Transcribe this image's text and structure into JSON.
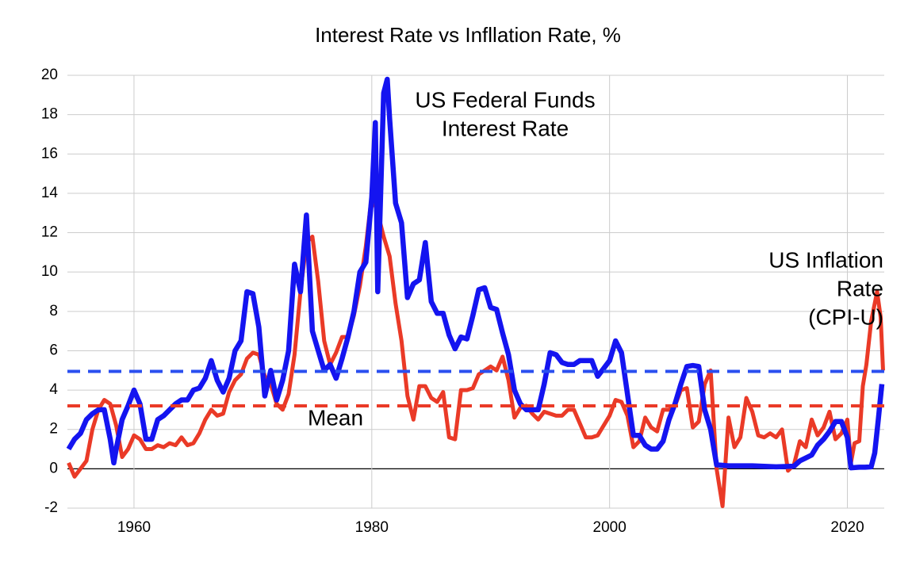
{
  "chart_data": {
    "type": "line",
    "title": "Interest Rate vs Infllation Rate, %",
    "xlim": [
      1954.4,
      2023.1
    ],
    "xticks": [
      1960,
      1980,
      2000,
      2020
    ],
    "ylim": [
      -2,
      20
    ],
    "yticks": [
      -2,
      0,
      2,
      4,
      6,
      8,
      10,
      12,
      14,
      16,
      18,
      20
    ],
    "grid": true,
    "series": [
      {
        "color": "#ea3a27",
        "x": [
          1954.5,
          1955,
          1955.5,
          1956,
          1956.5,
          1957,
          1957.5,
          1958,
          1958.5,
          1959,
          1959.5,
          1960,
          1960.5,
          1961,
          1961.5,
          1962,
          1962.5,
          1963,
          1963.5,
          1964,
          1964.5,
          1965,
          1965.5,
          1966,
          1966.5,
          1967,
          1967.5,
          1968,
          1968.5,
          1969,
          1969.5,
          1970,
          1970.5,
          1971,
          1971.5,
          1972,
          1972.5,
          1973,
          1973.5,
          1974,
          1974.5,
          1975,
          1975.5,
          1976,
          1976.5,
          1977,
          1977.5,
          1978,
          1978.5,
          1979,
          1979.5,
          1980,
          1980.5,
          1981,
          1981.5,
          1982,
          1982.5,
          1983,
          1983.5,
          1984,
          1984.5,
          1985,
          1985.5,
          1986,
          1986.5,
          1987,
          1987.5,
          1988,
          1988.5,
          1989,
          1989.5,
          1990,
          1990.5,
          1991,
          1991.5,
          1992,
          1992.5,
          1993,
          1993.5,
          1994,
          1994.5,
          1995,
          1995.5,
          1996,
          1996.5,
          1997,
          1997.5,
          1998,
          1998.5,
          1999,
          1999.5,
          2000,
          2000.5,
          2001,
          2001.5,
          2002,
          2002.5,
          2003,
          2003.5,
          2004,
          2004.5,
          2005,
          2005.5,
          2006,
          2006.5,
          2007,
          2007.5,
          2008,
          2008.5,
          2009,
          2009.5,
          2010,
          2010.5,
          2011,
          2011.5,
          2012,
          2012.5,
          2013,
          2013.5,
          2014,
          2014.5,
          2015,
          2015.5,
          2016,
          2016.5,
          2017,
          2017.5,
          2018,
          2018.5,
          2019,
          2019.5,
          2020,
          2020.3,
          2020.6,
          2021,
          2021.3,
          2021.6,
          2022,
          2022.5,
          2022.8,
          2023
        ],
        "values": [
          0.3,
          -0.4,
          0.0,
          0.4,
          2.0,
          3.0,
          3.5,
          3.3,
          2.2,
          0.6,
          1.0,
          1.7,
          1.5,
          1.0,
          1.0,
          1.2,
          1.1,
          1.3,
          1.2,
          1.6,
          1.2,
          1.3,
          1.8,
          2.5,
          3.0,
          2.7,
          2.8,
          3.9,
          4.5,
          4.8,
          5.6,
          5.9,
          5.8,
          4.7,
          4.3,
          3.3,
          3.0,
          3.8,
          5.8,
          9.0,
          11.5,
          11.8,
          9.5,
          6.5,
          5.3,
          5.9,
          6.7,
          6.7,
          7.8,
          9.3,
          11.3,
          13.9,
          13.0,
          11.8,
          10.8,
          8.4,
          6.5,
          3.7,
          2.5,
          4.2,
          4.2,
          3.6,
          3.4,
          3.9,
          1.6,
          1.5,
          4.0,
          4.0,
          4.1,
          4.8,
          5.0,
          5.2,
          5.0,
          5.7,
          4.5,
          2.6,
          3.1,
          3.2,
          2.8,
          2.5,
          2.9,
          2.8,
          2.7,
          2.7,
          3.0,
          3.0,
          2.3,
          1.6,
          1.6,
          1.7,
          2.2,
          2.7,
          3.5,
          3.4,
          2.7,
          1.1,
          1.4,
          2.6,
          2.1,
          1.9,
          3.0,
          3.0,
          3.2,
          4.0,
          4.1,
          2.1,
          2.4,
          4.3,
          5.0,
          0.0,
          -1.9,
          2.6,
          1.1,
          1.6,
          3.6,
          2.9,
          1.7,
          1.6,
          1.8,
          1.6,
          2.0,
          -0.1,
          0.2,
          1.4,
          1.1,
          2.5,
          1.7,
          2.1,
          2.9,
          1.5,
          1.8,
          2.5,
          0.3,
          1.3,
          1.4,
          4.2,
          5.3,
          7.5,
          9.0,
          7.7,
          5.0
        ]
      },
      {
        "color": "#1414f0",
        "x": [
          1954.5,
          1955,
          1955.5,
          1956,
          1956.5,
          1957,
          1957.5,
          1958,
          1958.3,
          1958.5,
          1959,
          1959.5,
          1960,
          1960.5,
          1961,
          1961.5,
          1962,
          1962.5,
          1963,
          1963.5,
          1964,
          1964.5,
          1965,
          1965.5,
          1966,
          1966.5,
          1967,
          1967.5,
          1968,
          1968.5,
          1969,
          1969.5,
          1970,
          1970.5,
          1971,
          1971.5,
          1972,
          1972.5,
          1973,
          1973.5,
          1974,
          1974.5,
          1975,
          1975.5,
          1976,
          1976.5,
          1977,
          1977.5,
          1978,
          1978.5,
          1979,
          1979.5,
          1980,
          1980.3,
          1980.5,
          1981,
          1981.3,
          1981.5,
          1982,
          1982.5,
          1983,
          1983.5,
          1984,
          1984.5,
          1985,
          1985.5,
          1986,
          1986.5,
          1987,
          1987.5,
          1988,
          1988.5,
          1989,
          1989.5,
          1990,
          1990.5,
          1991,
          1991.5,
          1992,
          1992.5,
          1993,
          1993.5,
          1994,
          1994.5,
          1995,
          1995.5,
          1996,
          1996.5,
          1997,
          1997.5,
          1998,
          1998.5,
          1999,
          1999.5,
          2000,
          2000.5,
          2001,
          2001.5,
          2002,
          2002.5,
          2003,
          2003.5,
          2004,
          2004.5,
          2005,
          2005.5,
          2006,
          2006.5,
          2007,
          2007.5,
          2008,
          2008.5,
          2009,
          2010,
          2012,
          2014,
          2015.5,
          2016,
          2017,
          2017.5,
          2018,
          2018.5,
          2019,
          2019.5,
          2020,
          2020.3,
          2021,
          2021.5,
          2022,
          2022.3,
          2022.6,
          2022.9
        ],
        "values": [
          1.0,
          1.5,
          1.8,
          2.5,
          2.8,
          3.0,
          3.0,
          1.5,
          0.3,
          1.0,
          2.5,
          3.2,
          4.0,
          3.3,
          1.5,
          1.5,
          2.5,
          2.7,
          3.0,
          3.3,
          3.5,
          3.5,
          4.0,
          4.1,
          4.6,
          5.5,
          4.5,
          3.9,
          4.6,
          6.0,
          6.5,
          9.0,
          8.9,
          7.2,
          3.7,
          5.0,
          3.5,
          4.5,
          6.0,
          10.4,
          9.0,
          12.9,
          7.0,
          6.0,
          5.0,
          5.3,
          4.6,
          5.6,
          6.7,
          8.0,
          10.0,
          10.5,
          13.8,
          17.6,
          9.0,
          19.1,
          19.8,
          17.8,
          13.5,
          12.5,
          8.7,
          9.4,
          9.6,
          11.5,
          8.5,
          7.9,
          7.9,
          6.8,
          6.1,
          6.7,
          6.6,
          7.8,
          9.1,
          9.2,
          8.2,
          8.1,
          6.9,
          5.8,
          4.0,
          3.3,
          3.0,
          3.0,
          3.0,
          4.3,
          5.9,
          5.8,
          5.4,
          5.3,
          5.3,
          5.5,
          5.5,
          5.5,
          4.7,
          5.1,
          5.5,
          6.5,
          5.9,
          3.8,
          1.7,
          1.7,
          1.2,
          1.0,
          1.0,
          1.4,
          2.5,
          3.3,
          4.3,
          5.2,
          5.25,
          5.2,
          3.0,
          2.0,
          0.2,
          0.15,
          0.15,
          0.1,
          0.13,
          0.4,
          0.7,
          1.2,
          1.5,
          1.9,
          2.4,
          2.4,
          1.6,
          0.05,
          0.08,
          0.08,
          0.1,
          0.8,
          2.5,
          4.3
        ]
      }
    ],
    "mean_lines": [
      {
        "value": 4.95,
        "color": "#2a4ff0"
      },
      {
        "value": 3.2,
        "color": "#ea3a27"
      }
    ],
    "annotations": [
      {
        "lines": [
          "US Federal Funds",
          "Interest Rate"
        ]
      },
      {
        "lines": [
          "US Inflation",
          "Rate",
          "(CPI-U)"
        ]
      },
      {
        "lines": [
          "Mean"
        ]
      }
    ]
  }
}
